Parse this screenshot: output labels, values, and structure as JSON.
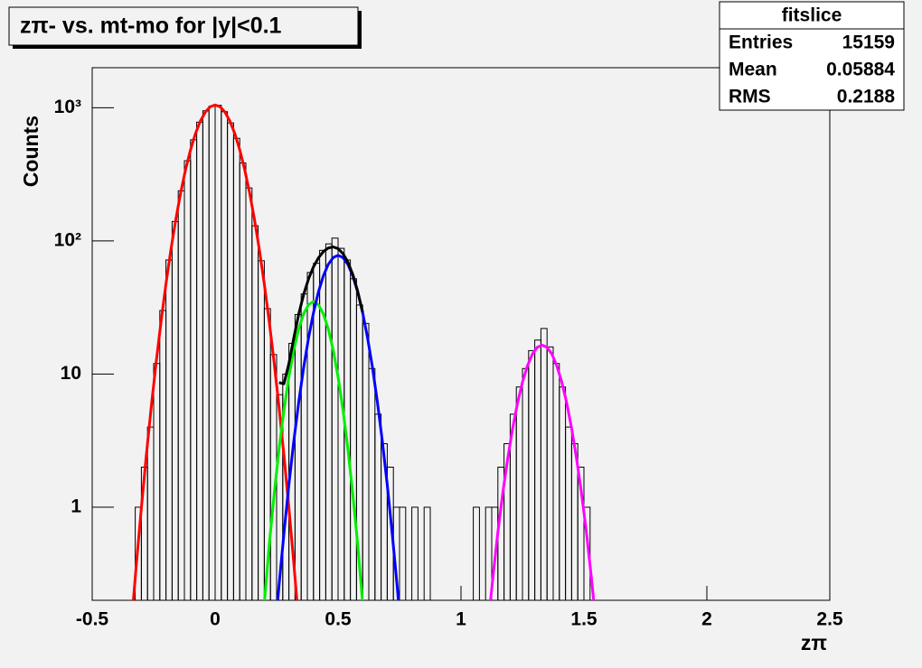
{
  "chart_data": {
    "type": "histogram",
    "title": "zπ- vs. mt-mo for |y|<0.1",
    "x_label": "zπ",
    "y_label": "Counts",
    "log_y": true,
    "xlim": [
      -0.5,
      2.5
    ],
    "ylim": [
      0.2,
      2000
    ],
    "xticks": [
      -0.5,
      0,
      0.5,
      1,
      1.5,
      2,
      2.5
    ],
    "yticks": [
      1,
      10,
      {
        "value": 100,
        "label": "10²"
      },
      {
        "value": 1000,
        "label": "10³"
      }
    ],
    "color": "#000000",
    "stats": {
      "title": "fitslice",
      "rows": [
        {
          "label": "Entries",
          "value": 15159
        },
        {
          "label": "Mean",
          "value": 0.05884
        },
        {
          "label": "RMS",
          "value": 0.2188
        }
      ]
    },
    "bins": [
      -0.5,
      -0.475,
      -0.45,
      -0.425,
      -0.4,
      -0.375,
      -0.35,
      -0.325,
      -0.3,
      -0.275,
      -0.25,
      -0.225,
      -0.2,
      -0.175,
      -0.15,
      -0.125,
      -0.1,
      -0.075,
      -0.05,
      -0.025,
      0,
      0.025,
      0.05,
      0.075,
      0.1,
      0.125,
      0.15,
      0.175,
      0.2,
      0.225,
      0.25,
      0.275,
      0.3,
      0.325,
      0.35,
      0.375,
      0.4,
      0.425,
      0.45,
      0.475,
      0.5,
      0.525,
      0.55,
      0.575,
      0.6,
      0.625,
      0.65,
      0.675,
      0.7,
      0.725,
      0.75,
      0.775,
      0.8,
      0.825,
      0.85,
      0.875,
      0.9,
      0.925,
      0.95,
      0.975,
      1,
      1.025,
      1.05,
      1.075,
      1.1,
      1.125,
      1.15,
      1.175,
      1.2,
      1.225,
      1.25,
      1.275,
      1.3,
      1.325,
      1.35,
      1.375,
      1.4,
      1.425,
      1.45,
      1.475,
      1.5,
      1.525,
      1.55,
      1.575,
      1.6,
      1.625,
      1.65,
      1.675,
      1.7,
      1.725,
      1.75,
      1.775,
      1.8,
      1.825,
      1.85,
      1.875,
      1.9,
      1.925,
      1.95,
      1.975,
      2,
      2.025,
      2.05,
      2.075,
      2.1,
      2.125,
      2.15,
      2.175,
      2.2,
      2.225,
      2.25,
      2.275,
      2.3,
      2.325,
      2.35,
      2.375,
      2.4,
      2.425,
      2.45,
      2.475,
      2.5
    ],
    "counts": [
      0,
      0,
      0,
      0,
      0,
      0,
      0,
      1,
      2,
      4,
      12,
      30,
      72,
      140,
      238,
      400,
      575,
      780,
      950,
      1030,
      1045,
      935,
      770,
      590,
      385,
      250,
      130,
      71,
      31,
      14,
      7,
      10,
      17,
      28,
      40,
      58,
      68,
      85,
      95,
      105,
      88,
      72,
      52,
      33,
      24,
      11,
      5,
      3,
      2,
      1,
      1,
      0,
      1,
      0,
      1,
      0,
      0,
      0,
      0,
      0,
      0,
      0,
      1,
      0,
      1,
      1,
      2,
      3,
      5,
      8,
      11,
      15,
      18,
      22,
      16,
      12,
      8,
      4,
      3,
      2,
      1,
      0,
      0,
      0,
      0,
      0,
      0,
      0,
      0,
      0,
      0,
      0,
      0,
      0,
      0,
      0,
      0,
      0,
      0,
      0,
      0,
      0,
      0,
      0,
      0,
      0,
      0,
      0,
      0,
      0,
      0,
      0,
      0,
      0,
      0,
      0,
      0,
      0,
      0,
      0
    ],
    "fits": [
      {
        "color": "#ff0000",
        "x": [
          -0.34,
          -0.32,
          -0.3,
          -0.28,
          -0.26,
          -0.24,
          -0.22,
          -0.2,
          -0.18,
          -0.16,
          -0.14,
          -0.12,
          -0.1,
          -0.08,
          -0.06,
          -0.04,
          -0.02,
          0,
          0.02,
          0.04,
          0.06,
          0.08,
          0.1,
          0.12,
          0.14,
          0.16,
          0.18,
          0.2,
          0.22,
          0.24,
          0.26,
          0.28,
          0.3,
          0.32,
          0.34
        ],
        "values": [
          0.137,
          0.38,
          0.99,
          2.44,
          5.63,
          12.2,
          24.8,
          47.5,
          85.7,
          145,
          231,
          345,
          484,
          640,
          795,
          928,
          1018,
          1050,
          1018,
          928,
          795,
          640,
          484,
          345,
          231,
          145,
          85.7,
          47.5,
          24.8,
          12.2,
          5.63,
          2.44,
          0.99,
          0.38,
          0.137
        ]
      },
      {
        "color": "#00ee00",
        "x": [
          0.18,
          0.2,
          0.22,
          0.24,
          0.26,
          0.28,
          0.3,
          0.32,
          0.34,
          0.36,
          0.38,
          0.4,
          0.42,
          0.44,
          0.46,
          0.48,
          0.5,
          0.52,
          0.54,
          0.56,
          0.58,
          0.6,
          0.62
        ],
        "values": [
          0.064,
          0.19,
          0.52,
          1.25,
          2.74,
          5.38,
          9.53,
          15.2,
          21.9,
          28.4,
          33.2,
          35,
          33.2,
          28.4,
          21.9,
          15.2,
          9.53,
          5.38,
          2.74,
          1.25,
          0.52,
          0.19,
          0.064
        ]
      },
      {
        "color": "#0000ff",
        "x": [
          0.24,
          0.26,
          0.28,
          0.3,
          0.32,
          0.34,
          0.36,
          0.38,
          0.4,
          0.42,
          0.44,
          0.46,
          0.48,
          0.5,
          0.52,
          0.54,
          0.56,
          0.58,
          0.6,
          0.62,
          0.64,
          0.66,
          0.68,
          0.7,
          0.72,
          0.74,
          0.76
        ],
        "values": [
          0.095,
          0.26,
          0.64,
          1.48,
          3.14,
          6.16,
          11.2,
          18.7,
          28.9,
          41.3,
          54.6,
          66.6,
          75,
          78,
          75,
          66.6,
          54.6,
          41.3,
          28.9,
          18.7,
          11.2,
          6.16,
          3.14,
          1.48,
          0.64,
          0.26,
          0.095
        ]
      },
      {
        "color": "#000000",
        "x": [
          0.26,
          0.28,
          0.3,
          0.32,
          0.34,
          0.36,
          0.38,
          0.4,
          0.42,
          0.44,
          0.46,
          0.48,
          0.5,
          0.52,
          0.54,
          0.56,
          0.58,
          0.6
        ],
        "values": [
          8.63,
          8.46,
          12.0,
          18.7,
          28.2,
          39.6,
          51.9,
          63.9,
          74.5,
          83.0,
          88.5,
          90.2,
          87.5,
          80.4,
          69.3,
          55.9,
          41.8,
          29.1
        ]
      },
      {
        "color": "#ff00ff",
        "x": [
          1.11,
          1.13,
          1.15,
          1.17,
          1.19,
          1.21,
          1.23,
          1.25,
          1.27,
          1.29,
          1.31,
          1.33,
          1.35,
          1.37,
          1.39,
          1.41,
          1.43,
          1.45,
          1.47,
          1.49,
          1.51,
          1.53,
          1.55
        ],
        "values": [
          0.13,
          0.3,
          0.65,
          1.28,
          2.32,
          3.91,
          6.07,
          8.7,
          11.5,
          14.1,
          15.9,
          16.5,
          15.9,
          14.1,
          11.5,
          8.7,
          6.07,
          3.91,
          2.32,
          1.28,
          0.65,
          0.3,
          0.13
        ]
      }
    ]
  }
}
